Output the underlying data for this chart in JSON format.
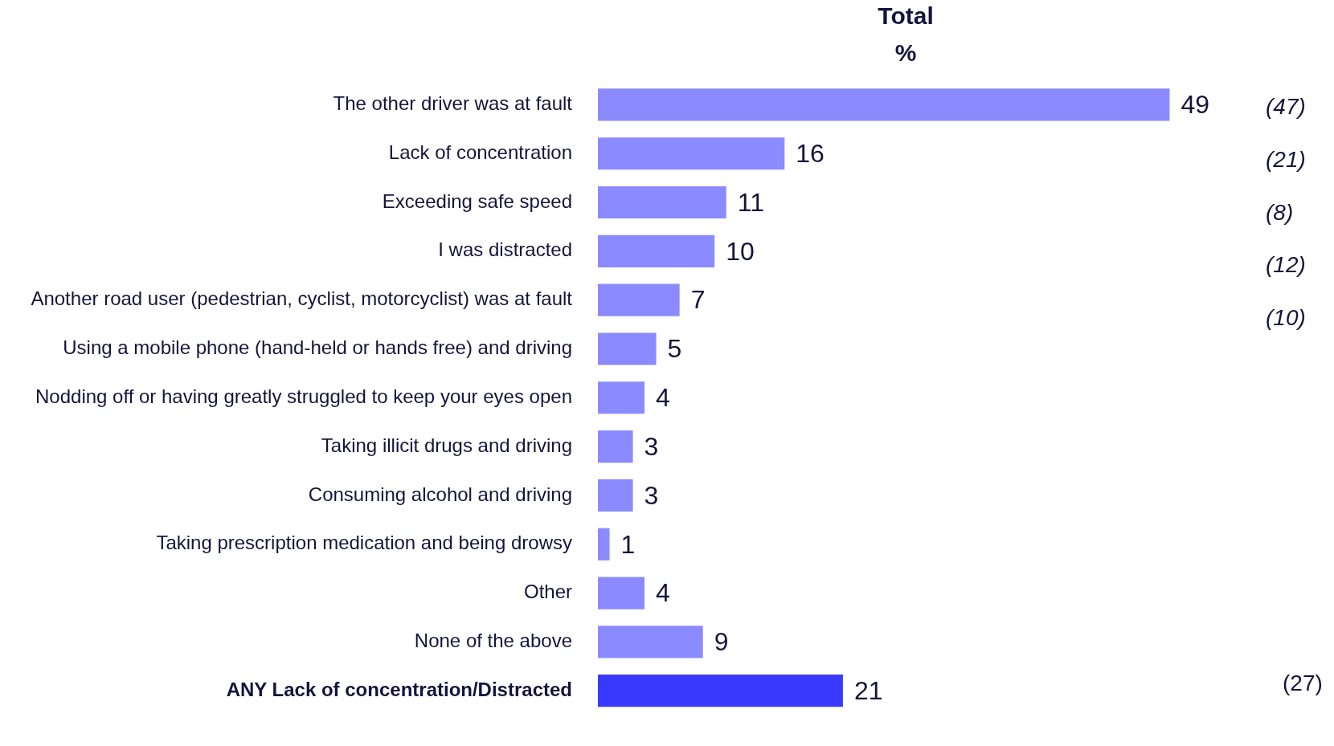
{
  "chart_data": {
    "type": "bar",
    "orientation": "horizontal",
    "title": "Total",
    "subtitle": "%",
    "categories": [
      "The other driver was at fault",
      "Lack of concentration",
      "Exceeding safe speed",
      "I was distracted",
      "Another road user (pedestrian, cyclist, motorcyclist) was at fault",
      "Using a mobile phone (hand-held or hands free) and driving",
      "Nodding off or having greatly struggled to keep your eyes open",
      "Taking illicit drugs and driving",
      "Consuming alcohol and driving",
      "Taking prescription medication and being drowsy",
      "Other",
      "None of the above",
      "ANY Lack of concentration/Distracted"
    ],
    "values": [
      49,
      16,
      11,
      10,
      7,
      5,
      4,
      3,
      3,
      1,
      4,
      9,
      21
    ],
    "colors": [
      "#8b8bff",
      "#8b8bff",
      "#8b8bff",
      "#8b8bff",
      "#8b8bff",
      "#8b8bff",
      "#8b8bff",
      "#8b8bff",
      "#8b8bff",
      "#8b8bff",
      "#8b8bff",
      "#8b8bff",
      "#3a3aff"
    ],
    "tick_labels": "y",
    "legend": false,
    "data_labels": true,
    "annotations": [
      "(47)",
      "(21)",
      "(8)",
      "(12)",
      "(10)",
      "(27)"
    ]
  }
}
